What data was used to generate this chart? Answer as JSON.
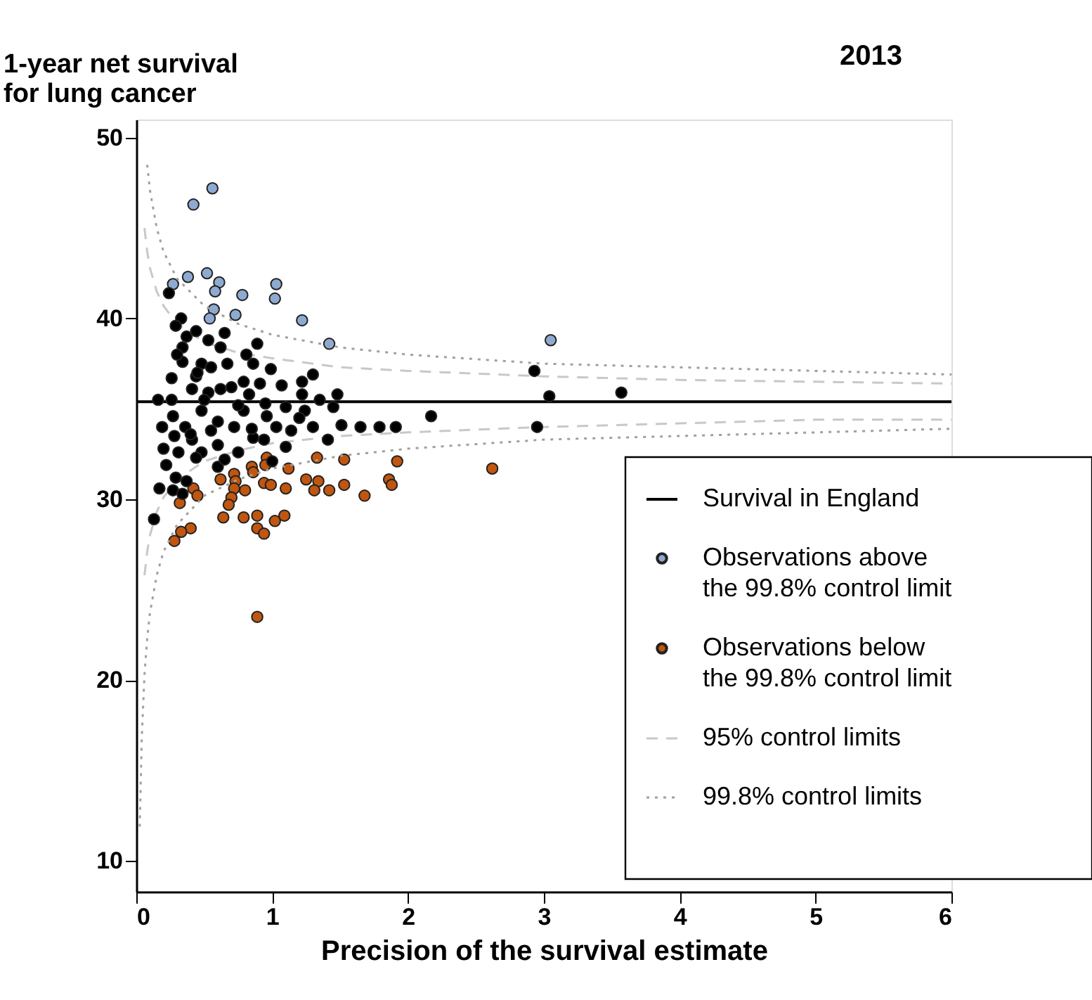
{
  "chart_data": {
    "type": "scatter",
    "title": "2013",
    "ylabel": "1-year net survival for lung cancer",
    "xlabel": "Precision of the survival estimate",
    "xlim": [
      0,
      6
    ],
    "xticks": [
      0,
      1,
      2,
      3,
      4,
      5,
      6
    ],
    "ylim": [
      8.3,
      51
    ],
    "yticks": [
      10,
      20,
      30,
      40,
      50
    ],
    "grid": false,
    "legend": "bottom right",
    "series": [
      {
        "type": "line",
        "name": "Survival in England",
        "color": "#000000",
        "line_style": "solid",
        "x": [
          0,
          6
        ],
        "values": [
          35.4,
          35.4
        ]
      },
      {
        "marker": "circle",
        "name": "Observations above the 99.8% control limit",
        "color": "#8eaad0",
        "x": [
          0.56,
          0.42,
          0.27,
          0.38,
          0.52,
          0.61,
          0.58,
          0.78,
          1.03,
          1.02,
          0.57,
          0.54,
          0.73,
          1.22,
          1.42,
          3.05
        ],
        "values": [
          47.2,
          46.3,
          41.9,
          42.3,
          42.5,
          42.0,
          41.5,
          41.3,
          41.9,
          41.1,
          40.5,
          40.0,
          40.2,
          39.9,
          38.6,
          38.8
        ]
      },
      {
        "marker": "circle",
        "name": "Observations below the 99.8% control limit",
        "color": "#c0560f",
        "x": [
          0.96,
          0.95,
          0.85,
          0.86,
          1.12,
          1.33,
          1.53,
          1.92,
          0.42,
          0.45,
          0.32,
          0.62,
          0.72,
          0.73,
          0.72,
          0.7,
          0.68,
          0.8,
          0.94,
          0.99,
          1.1,
          1.25,
          1.34,
          1.31,
          1.42,
          1.53,
          1.68,
          1.86,
          1.88,
          0.64,
          0.79,
          0.89,
          0.89,
          0.94,
          1.02,
          1.09,
          0.4,
          0.33,
          0.28,
          0.89,
          2.62
        ],
        "values": [
          32.3,
          31.9,
          31.8,
          31.5,
          31.7,
          32.3,
          32.2,
          32.1,
          30.6,
          30.2,
          29.8,
          31.1,
          31.4,
          31.0,
          30.6,
          30.1,
          29.7,
          30.5,
          30.9,
          30.8,
          30.6,
          31.1,
          31.0,
          30.5,
          30.5,
          30.8,
          30.2,
          31.1,
          30.8,
          29.0,
          29.0,
          29.1,
          28.4,
          28.1,
          28.8,
          29.1,
          28.4,
          28.2,
          27.7,
          23.5,
          31.7
        ]
      },
      {
        "type": "line",
        "name": "95% control limits",
        "color": "#c8c8c8",
        "line_style": "dashed",
        "x": [
          0.06,
          0.08,
          0.1,
          0.15,
          0.2,
          0.3,
          0.5,
          0.75,
          1,
          1.5,
          2,
          3,
          4,
          5,
          6
        ],
        "values": [
          45.0,
          43.7,
          42.8,
          41.5,
          40.7,
          39.7,
          38.7,
          38.1,
          37.8,
          37.3,
          37.1,
          36.8,
          36.6,
          36.5,
          36.4
        ]
      },
      {
        "type": "line",
        "color": "#c8c8c8",
        "line_style": "dashed",
        "x": [
          0.06,
          0.08,
          0.1,
          0.15,
          0.2,
          0.3,
          0.5,
          0.75,
          1,
          1.5,
          2,
          3,
          4,
          5,
          6
        ],
        "values": [
          25.8,
          27.1,
          28.0,
          29.3,
          30.1,
          31.1,
          32.1,
          32.7,
          33.1,
          33.5,
          33.7,
          34.0,
          34.2,
          34.4,
          34.4
        ]
      },
      {
        "type": "line",
        "name": "99.8% control limits",
        "color": "#a0a0a0",
        "line_style": "dotted",
        "x": [
          0.08,
          0.1,
          0.15,
          0.2,
          0.3,
          0.5,
          0.75,
          1,
          1.5,
          2,
          3,
          4,
          5,
          6
        ],
        "values": [
          48.5,
          47.1,
          45.0,
          43.7,
          42.2,
          40.7,
          39.7,
          39.1,
          38.4,
          38.0,
          37.5,
          37.3,
          37.1,
          36.9
        ]
      },
      {
        "type": "line",
        "color": "#a0a0a0",
        "line_style": "dotted",
        "x": [
          0.025,
          0.04,
          0.06,
          0.08,
          0.1,
          0.15,
          0.2,
          0.3,
          0.5,
          0.75,
          1,
          1.5,
          2,
          3,
          4,
          5,
          6
        ],
        "values": [
          11.9,
          16.8,
          20.3,
          22.3,
          23.7,
          25.8,
          27.1,
          28.6,
          30.2,
          31.1,
          31.7,
          32.4,
          32.8,
          33.3,
          33.5,
          33.7,
          33.9
        ]
      },
      {
        "marker": "circle",
        "color": "#000000",
        "x": [
          0.24,
          0.33,
          0.29,
          0.44,
          0.37,
          0.65,
          0.34,
          0.53,
          0.62,
          0.89,
          0.81,
          0.34,
          0.48,
          0.67,
          0.86,
          1.3,
          1.22,
          0.26,
          0.44,
          0.79,
          0.99,
          1.07,
          0.91,
          0.62,
          0.41,
          0.16,
          0.26,
          1.48,
          1.22,
          0.83,
          0.53,
          0.27,
          0.48,
          0.79,
          0.96,
          1.24,
          1.45,
          0.19,
          0.36,
          0.55,
          0.72,
          1.03,
          1.14,
          1.3,
          1.51,
          0.41,
          0.6,
          0.86,
          0.94,
          1.41,
          0.31,
          0.48,
          0.75,
          1.1,
          0.22,
          0.44,
          0.6,
          0.29,
          0.37,
          0.17,
          0.27,
          0.34,
          0.13,
          0.3,
          0.45,
          0.55,
          0.7,
          0.95,
          1.1,
          0.6,
          0.85,
          0.4,
          1.2,
          0.5,
          0.75,
          1.35,
          0.28,
          0.2,
          0.65,
          1.0,
          1.65,
          1.79,
          1.91,
          2.17,
          2.93,
          3.04,
          3.57,
          2.95
        ],
        "values": [
          41.4,
          40.0,
          39.6,
          39.3,
          39.0,
          39.2,
          38.4,
          38.8,
          38.4,
          38.6,
          38.0,
          37.6,
          37.5,
          37.5,
          37.5,
          36.9,
          36.5,
          36.7,
          36.8,
          36.5,
          37.2,
          36.3,
          36.4,
          36.1,
          36.1,
          35.5,
          35.5,
          35.8,
          35.8,
          35.8,
          35.9,
          34.6,
          34.9,
          34.9,
          34.6,
          34.9,
          35.1,
          34.0,
          34.0,
          33.8,
          34.0,
          34.0,
          33.8,
          34.0,
          34.1,
          33.3,
          33.0,
          33.4,
          33.3,
          33.3,
          32.6,
          32.6,
          32.6,
          32.9,
          31.9,
          32.3,
          31.8,
          31.2,
          31.0,
          30.6,
          30.5,
          30.3,
          28.9,
          38.0,
          37.0,
          37.3,
          36.2,
          35.3,
          35.1,
          34.3,
          33.9,
          33.6,
          34.5,
          35.5,
          35.2,
          35.5,
          33.5,
          32.8,
          32.2,
          32.1,
          34.0,
          34.0,
          34.0,
          34.6,
          37.1,
          35.7,
          35.9,
          34.0
        ]
      }
    ]
  }
}
